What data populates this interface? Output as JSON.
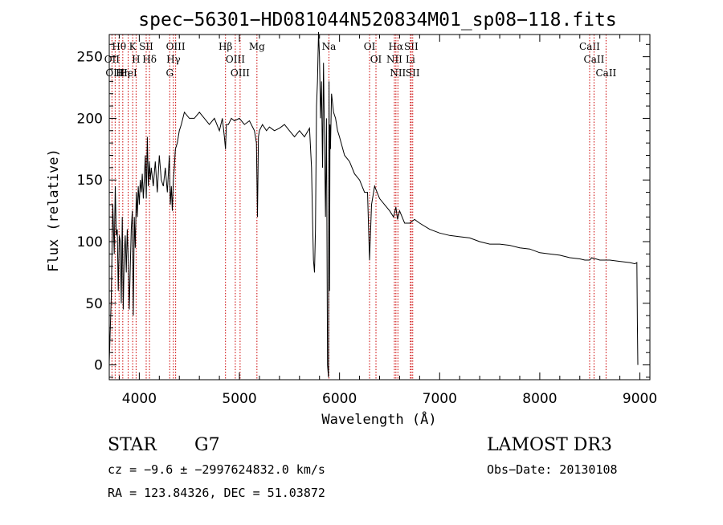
{
  "chart_data": {
    "type": "line",
    "title": "spec−56301−HD081044N520834M01_sp08−118.fits",
    "xlabel": "Wavelength (Å)",
    "ylabel": "Flux (relative)",
    "xlim": [
      3700,
      9100
    ],
    "ylim": [
      -12,
      268
    ],
    "xticks": [
      4000,
      5000,
      6000,
      7000,
      8000,
      9000
    ],
    "yticks": [
      0,
      50,
      100,
      150,
      200,
      250
    ],
    "grid": false,
    "line_color": "#000000",
    "marker_color": "#cc0000",
    "series": [
      {
        "x": [
          3700,
          3720,
          3735,
          3750,
          3760,
          3770,
          3780,
          3790,
          3800,
          3810,
          3820,
          3830,
          3840,
          3850,
          3860,
          3870,
          3880,
          3890,
          3900,
          3910,
          3920,
          3930,
          3940,
          3950,
          3960,
          3970,
          3980,
          3990,
          4000,
          4010,
          4020,
          4030,
          4040,
          4050,
          4060,
          4070,
          4080,
          4090,
          4100,
          4110,
          4120,
          4140,
          4160,
          4180,
          4200,
          4220,
          4240,
          4260,
          4280,
          4300,
          4310,
          4320,
          4330,
          4340,
          4350,
          4360,
          4380,
          4400,
          4420,
          4450,
          4500,
          4550,
          4600,
          4650,
          4700,
          4750,
          4800,
          4830,
          4850,
          4861,
          4870,
          4890,
          4920,
          4950,
          5000,
          5050,
          5100,
          5150,
          5170,
          5180,
          5190,
          5200,
          5230,
          5270,
          5300,
          5350,
          5400,
          5450,
          5500,
          5550,
          5600,
          5650,
          5700,
          5720,
          5730,
          5740,
          5750,
          5760,
          5770,
          5780,
          5790,
          5800,
          5810,
          5820,
          5830,
          5840,
          5850,
          5860,
          5870,
          5880,
          5890,
          5895,
          5900,
          5905,
          5910,
          5920,
          5940,
          5960,
          5980,
          6000,
          6050,
          6100,
          6150,
          6200,
          6250,
          6280,
          6300,
          6320,
          6350,
          6400,
          6450,
          6500,
          6540,
          6563,
          6580,
          6600,
          6650,
          6700,
          6750,
          6800,
          6900,
          7000,
          7100,
          7200,
          7300,
          7400,
          7500,
          7600,
          7700,
          7800,
          7900,
          8000,
          8100,
          8200,
          8300,
          8400,
          8450,
          8498,
          8520,
          8542,
          8560,
          8600,
          8662,
          8700,
          8800,
          8900,
          8950,
          8970,
          8975,
          8980
        ],
        "y": [
          2,
          55,
          130,
          90,
          145,
          105,
          110,
          60,
          105,
          100,
          50,
          120,
          45,
          90,
          105,
          75,
          110,
          85,
          45,
          80,
          110,
          125,
          40,
          120,
          95,
          140,
          120,
          145,
          130,
          150,
          140,
          155,
          135,
          150,
          170,
          135,
          185,
          145,
          165,
          150,
          160,
          145,
          165,
          140,
          170,
          150,
          145,
          160,
          140,
          170,
          130,
          145,
          125,
          150,
          160,
          175,
          180,
          190,
          195,
          205,
          200,
          200,
          205,
          200,
          195,
          200,
          190,
          200,
          185,
          175,
          195,
          195,
          200,
          198,
          200,
          195,
          198,
          190,
          180,
          120,
          185,
          190,
          195,
          190,
          193,
          190,
          192,
          195,
          190,
          185,
          190,
          185,
          192,
          160,
          120,
          85,
          75,
          110,
          210,
          230,
          270,
          250,
          200,
          230,
          160,
          245,
          180,
          120,
          200,
          0,
          -10,
          230,
          60,
          195,
          175,
          220,
          205,
          200,
          190,
          185,
          170,
          165,
          155,
          150,
          140,
          140,
          85,
          130,
          145,
          135,
          130,
          125,
          120,
          128,
          118,
          125,
          115,
          115,
          118,
          115,
          110,
          107,
          105,
          104,
          103,
          100,
          98,
          98,
          97,
          95,
          94,
          91,
          90,
          89,
          87,
          86,
          85,
          85,
          87,
          86,
          86,
          85,
          85,
          85,
          84,
          83,
          82,
          83,
          35,
          0
        ]
      }
    ],
    "line_markers": [
      {
        "label": "Hθ",
        "x": 3798
      },
      {
        "label": "OII",
        "x": 3727
      },
      {
        "label": "OIII",
        "x": 3759
      },
      {
        "label": "Hη",
        "x": 3835
      },
      {
        "label": "HeI",
        "x": 3889
      },
      {
        "label": "K",
        "x": 3934
      },
      {
        "label": "H",
        "x": 3968
      },
      {
        "label": "SII",
        "x": 4069
      },
      {
        "label": "Hδ",
        "x": 4102
      },
      {
        "label": "OIII",
        "x": 4363
      },
      {
        "label": "Hγ",
        "x": 4341
      },
      {
        "label": "G",
        "x": 4304
      },
      {
        "label": "Hβ",
        "x": 4861
      },
      {
        "label": "OIII",
        "x": 4959
      },
      {
        "label": "OIII",
        "x": 5007
      },
      {
        "label": "Mg",
        "x": 5175
      },
      {
        "label": "Na",
        "x": 5894
      },
      {
        "label": "OI",
        "x": 6300
      },
      {
        "label": "OI",
        "x": 6364
      },
      {
        "label": "Hα",
        "x": 6563
      },
      {
        "label": "NII",
        "x": 6548
      },
      {
        "label": "NII",
        "x": 6583
      },
      {
        "label": "SII",
        "x": 6716
      },
      {
        "label": "Li",
        "x": 6708
      },
      {
        "label": "SII",
        "x": 6731
      },
      {
        "label": "CaII",
        "x": 8498
      },
      {
        "label": "CaII",
        "x": 8542
      },
      {
        "label": "CaII",
        "x": 8662
      }
    ]
  },
  "info": {
    "class_label": "STAR",
    "subclass": "G7",
    "survey": "LAMOST DR3",
    "redshift_line": "cz = −9.6 ± −2997624832.0 km/s",
    "obs_date_line": "Obs−Date: 20130108",
    "coords_line": "RA = 123.84326, DEC =  51.03872"
  }
}
